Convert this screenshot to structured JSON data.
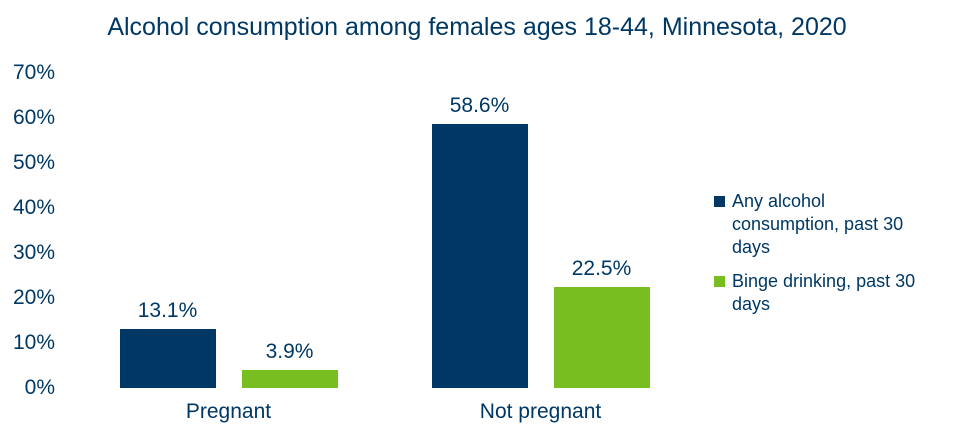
{
  "page": {
    "background": "#ffffff",
    "text_color": "#003865"
  },
  "chart_data": {
    "type": "bar",
    "title": "Alcohol consumption among females ages 18-44, Minnesota, 2020",
    "categories": [
      "Pregnant",
      "Not pregnant"
    ],
    "series": [
      {
        "name": "Any alcohol consumption, past 30 days",
        "color": "#003865",
        "values": [
          13.1,
          58.6
        ],
        "data_labels": [
          "13.1%",
          "58.6%"
        ]
      },
      {
        "name": "Binge drinking, past 30 days",
        "color": "#78BE21",
        "values": [
          3.9,
          22.5
        ],
        "data_labels": [
          "3.9%",
          "22.5%"
        ]
      }
    ],
    "y_axis": {
      "min": 0,
      "max": 70,
      "step": 10,
      "tick_labels": [
        "0%",
        "10%",
        "20%",
        "30%",
        "40%",
        "50%",
        "60%",
        "70%"
      ]
    },
    "grid": false,
    "legend_position": "right"
  }
}
